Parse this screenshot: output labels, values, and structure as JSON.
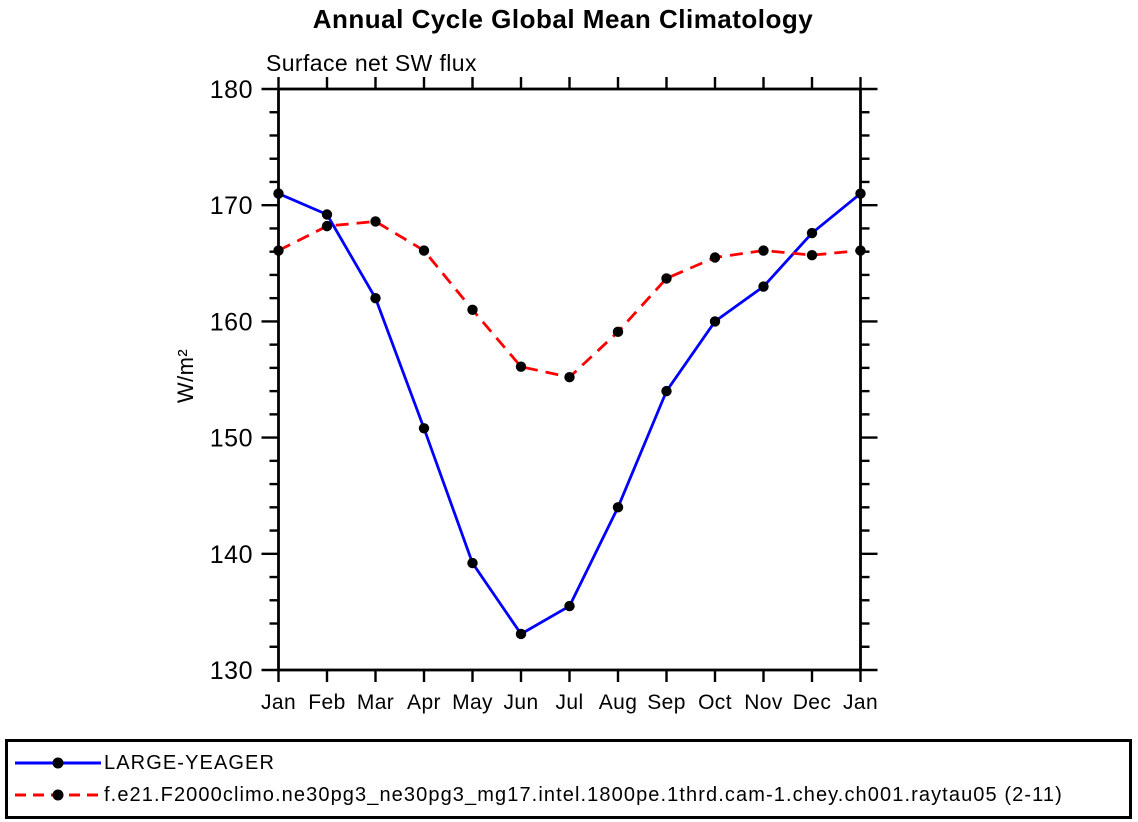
{
  "page": {
    "background": "#ffffff"
  },
  "chart_data": {
    "type": "line",
    "title": "Annual Cycle Global Mean Climatology",
    "subtitle": "Surface net SW flux",
    "ylabel": "W/m²",
    "xlabel": "",
    "ylim": [
      130,
      180
    ],
    "y_major_step": 10,
    "y_minor_step": 2,
    "y_ticks": [
      130,
      140,
      150,
      160,
      170,
      180
    ],
    "categories": [
      "Jan",
      "Feb",
      "Mar",
      "Apr",
      "May",
      "Jun",
      "Jul",
      "Aug",
      "Sep",
      "Oct",
      "Nov",
      "Dec",
      "Jan"
    ],
    "grid": false,
    "legend_position": "bottom",
    "axis_color": "#000000",
    "marker_shape": "filled-circle",
    "series": [
      {
        "name": "LARGE-YEAGER",
        "color": "#0000ff",
        "line_style": "solid",
        "marker_color": "#000000",
        "values": [
          171.0,
          169.2,
          162.0,
          150.8,
          139.2,
          133.1,
          135.5,
          144.0,
          154.0,
          160.0,
          163.0,
          167.6,
          171.0
        ]
      },
      {
        "name": "f.e21.F2000climo.ne30pg3_ne30pg3_mg17.intel.1800pe.1thrd.cam-1.chey.ch001.raytau05 (2-11)",
        "color": "#ff0000",
        "line_style": "dashed",
        "marker_color": "#000000",
        "values": [
          166.1,
          168.2,
          168.6,
          166.1,
          161.0,
          156.1,
          155.2,
          159.1,
          163.7,
          165.5,
          166.1,
          165.7,
          166.1
        ]
      }
    ]
  }
}
